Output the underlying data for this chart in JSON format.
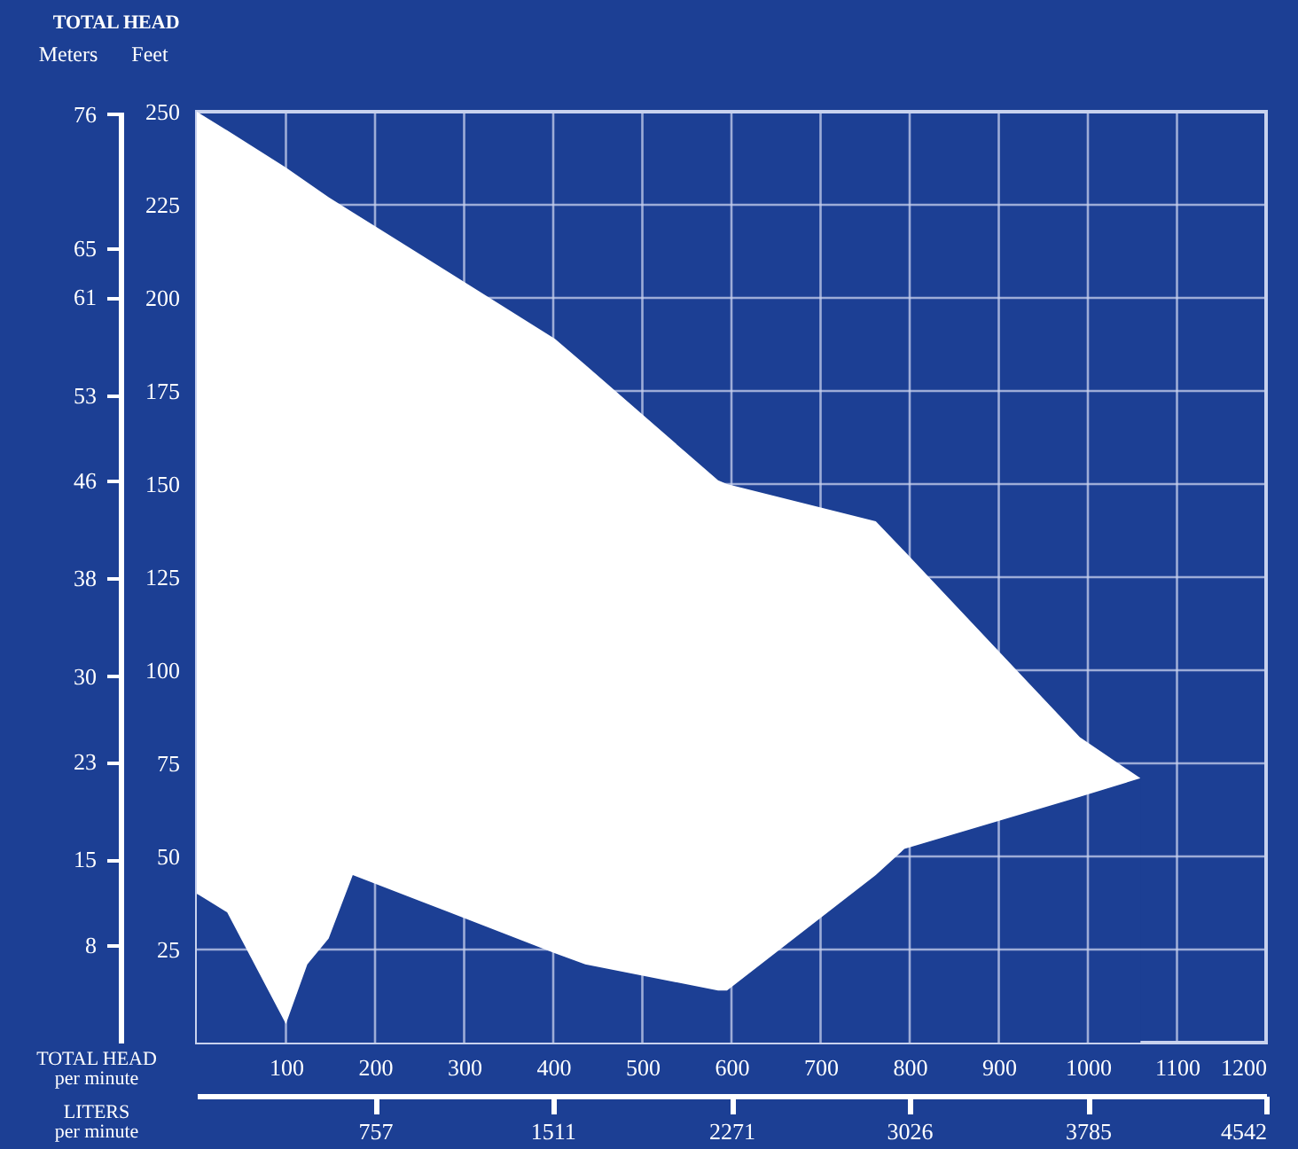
{
  "chart_data": {
    "type": "area",
    "title": "TOTAL HEAD",
    "xlabel": "TOTAL HEAD\nper minute",
    "ylabel": "Feet",
    "y2label": "Meters",
    "x2label": "LITERS\nper minute",
    "x": [
      0,
      34,
      100,
      124,
      148,
      175,
      402,
      436,
      585,
      595,
      762,
      794,
      991,
      1059
    ],
    "stacked": true,
    "series": [
      {
        "color": "#1c3f94",
        "values": [
          40,
          35,
          5,
          21,
          28,
          45,
          24,
          21,
          14,
          14,
          45,
          52,
          66,
          71
        ]
      },
      {
        "color": "#ffffff",
        "values": [
          210,
          210,
          230,
          210,
          199,
          178,
          165,
          161,
          137,
          136,
          95,
          80,
          16,
          0
        ]
      }
    ],
    "xlim": [
      0,
      1200
    ],
    "xticks": [
      100,
      200,
      300,
      400,
      500,
      600,
      700,
      800,
      900,
      1000,
      1100,
      1200
    ],
    "ylim": [
      0,
      250
    ],
    "yticks": [
      25,
      50,
      75,
      100,
      125,
      150,
      175,
      200,
      225,
      250
    ],
    "x2lim": [
      0,
      4542
    ],
    "x2ticks": [
      757,
      1511,
      2271,
      3026,
      3785,
      4542
    ],
    "y2lim": [
      0,
      76.2
    ],
    "y2ticks": [
      8,
      15,
      23,
      30,
      38,
      46,
      53,
      61,
      65,
      76
    ],
    "grid": true
  }
}
